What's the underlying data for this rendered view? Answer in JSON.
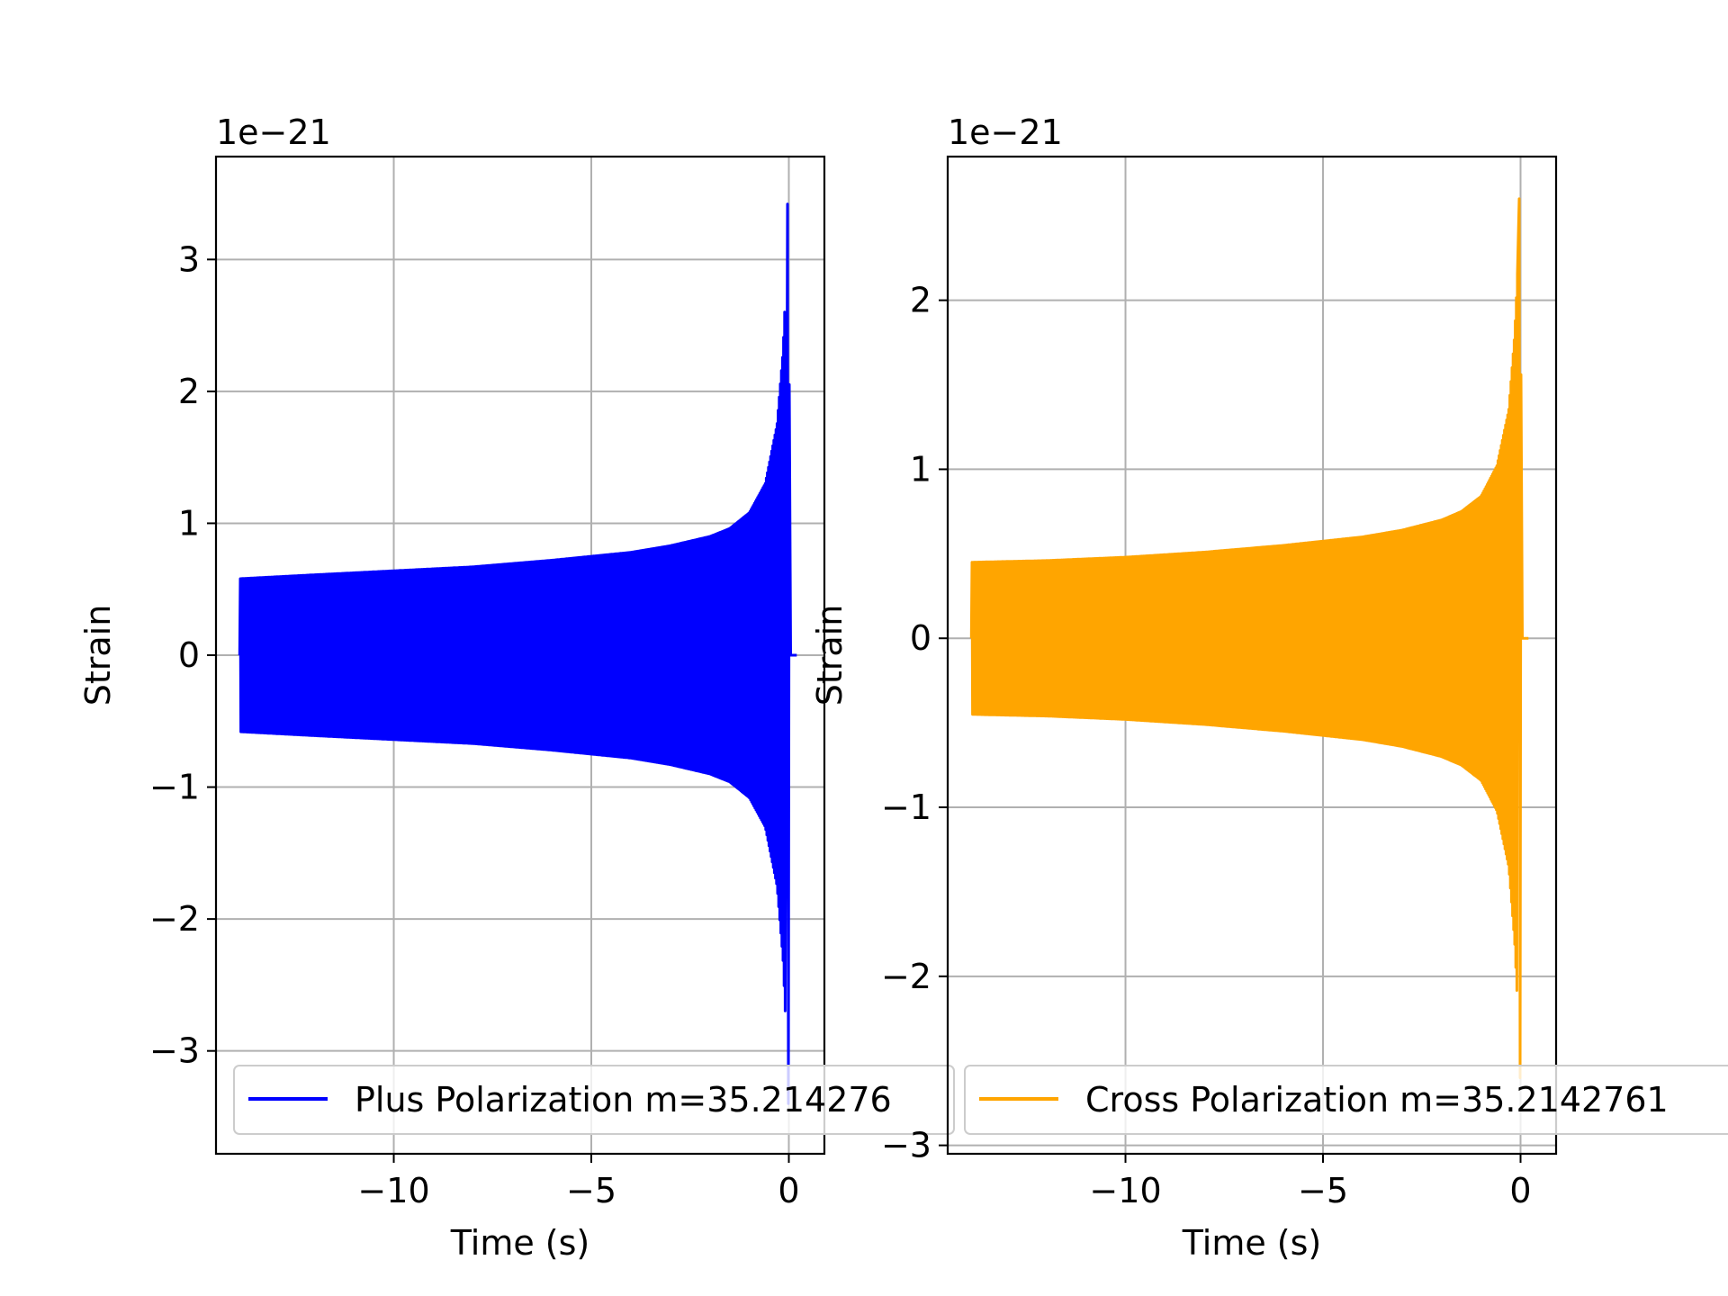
{
  "chart_data": [
    {
      "type": "line",
      "xlabel": "Time (s)",
      "ylabel": "Strain",
      "offset_text": "1e−21",
      "xlim": [
        -14.5,
        0.9
      ],
      "ylim": [
        -3.78,
        3.78
      ],
      "xticks": [
        -10,
        -5,
        0
      ],
      "xtick_labels": [
        "−10",
        "−5",
        "0"
      ],
      "yticks": [
        -3,
        -2,
        -1,
        0,
        1,
        2,
        3
      ],
      "ytick_labels": [
        "−3",
        "−2",
        "−1",
        "0",
        "1",
        "2",
        "3"
      ],
      "grid": true,
      "legend_position": "lower center",
      "series": [
        {
          "name": "Plus Polarization m=35.214276",
          "color": "#0000ff",
          "start_time": -13.9,
          "merger_time": 0.0,
          "end_time": 0.2,
          "envelope": {
            "t": [
              -13.9,
              -12,
              -10,
              -8,
              -6,
              -4,
              -3,
              -2,
              -1.5,
              -1,
              -0.6,
              -0.3,
              -0.15,
              -0.05,
              0.0
            ],
            "amplitude": [
              0.58,
              0.61,
              0.64,
              0.67,
              0.72,
              0.78,
              0.83,
              0.9,
              0.96,
              1.08,
              1.3,
              1.75,
              2.3,
              3.0,
              3.42
            ]
          },
          "minimum": -3.4
        }
      ]
    },
    {
      "type": "line",
      "xlabel": "Time (s)",
      "ylabel": "Strain",
      "offset_text": "1e−21",
      "xlim": [
        -14.5,
        0.9
      ],
      "ylim": [
        -3.05,
        2.85
      ],
      "xticks": [
        -10,
        -5,
        0
      ],
      "xtick_labels": [
        "−10",
        "−5",
        "0"
      ],
      "yticks": [
        -3,
        -2,
        -1,
        0,
        1,
        2
      ],
      "ytick_labels": [
        "−3",
        "−2",
        "−1",
        "0",
        "1",
        "2"
      ],
      "grid": true,
      "legend_position": "lower center",
      "series": [
        {
          "name": "Cross Polarization m=35.2142761",
          "color": "#ffa500",
          "start_time": -13.9,
          "merger_time": 0.0,
          "end_time": 0.2,
          "envelope": {
            "t": [
              -13.9,
              -12,
              -10,
              -8,
              -6,
              -4,
              -3,
              -2,
              -1.5,
              -1,
              -0.6,
              -0.3,
              -0.15,
              -0.05,
              0.0
            ],
            "amplitude": [
              0.45,
              0.46,
              0.48,
              0.51,
              0.55,
              0.6,
              0.64,
              0.7,
              0.75,
              0.84,
              1.02,
              1.35,
              1.8,
              2.3,
              2.6
            ]
          },
          "minimum": -2.6
        }
      ]
    }
  ]
}
